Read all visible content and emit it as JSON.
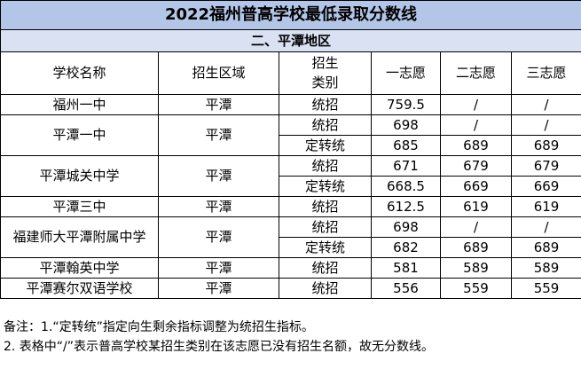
{
  "title": "2022福州普高学校最低录取分数线",
  "section": "二、平潭地区",
  "headers": {
    "school": "学校名称",
    "area": "招生区域",
    "category_line1": "招生",
    "category_line2": "类别",
    "choice1": "一志愿",
    "choice2": "二志愿",
    "choice3": "三志愿"
  },
  "schools": [
    {
      "name": "福州一中",
      "area": "平潭",
      "rows": [
        {
          "category": "统招",
          "c1": "759.5",
          "c2": "/",
          "c3": "/"
        }
      ]
    },
    {
      "name": "平潭一中",
      "area": "平潭",
      "rows": [
        {
          "category": "统招",
          "c1": "698",
          "c2": "/",
          "c3": "/"
        },
        {
          "category": "定转统",
          "c1": "685",
          "c2": "689",
          "c3": "689"
        }
      ]
    },
    {
      "name": "平潭城关中学",
      "area": "平潭",
      "rows": [
        {
          "category": "统招",
          "c1": "671",
          "c2": "679",
          "c3": "679"
        },
        {
          "category": "定转统",
          "c1": "668.5",
          "c2": "669",
          "c3": "669"
        }
      ]
    },
    {
      "name": "平潭三中",
      "area": "平潭",
      "rows": [
        {
          "category": "统招",
          "c1": "612.5",
          "c2": "619",
          "c3": "619"
        }
      ]
    },
    {
      "name": "福建师大平潭附属中学",
      "area": "平潭",
      "rows": [
        {
          "category": "统招",
          "c1": "698",
          "c2": "/",
          "c3": "/"
        },
        {
          "category": "定转统",
          "c1": "682",
          "c2": "689",
          "c3": "689"
        }
      ]
    },
    {
      "name": "平潭翰英中学",
      "area": "平潭",
      "rows": [
        {
          "category": "统招",
          "c1": "581",
          "c2": "589",
          "c3": "589"
        }
      ]
    },
    {
      "name": "平潭赛尔双语学校",
      "area": "平潭",
      "rows": [
        {
          "category": "统招",
          "c1": "556",
          "c2": "559",
          "c3": "559"
        }
      ]
    }
  ],
  "notes": [
    "备注：1.“定转统”指定向生剩余指标调整为统招生指标。",
    "2. 表格中“/”表示普高学校某招生类别在该志愿已没有招生名额，故无分数线。"
  ]
}
